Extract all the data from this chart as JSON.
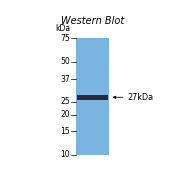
{
  "title": "Western Blot",
  "kda_label": "kDa",
  "band_annotation": "≱27kDa",
  "ladder_marks": [
    75,
    50,
    37,
    25,
    20,
    15,
    10
  ],
  "band_kda": 27,
  "gel_color": "#7ab4e0",
  "band_color": "#2a2a3a",
  "background_color": "#ffffff",
  "title_fontsize": 7.0,
  "label_fontsize": 5.8,
  "tick_fontsize": 5.5,
  "kda_label_fontsize": 5.5
}
